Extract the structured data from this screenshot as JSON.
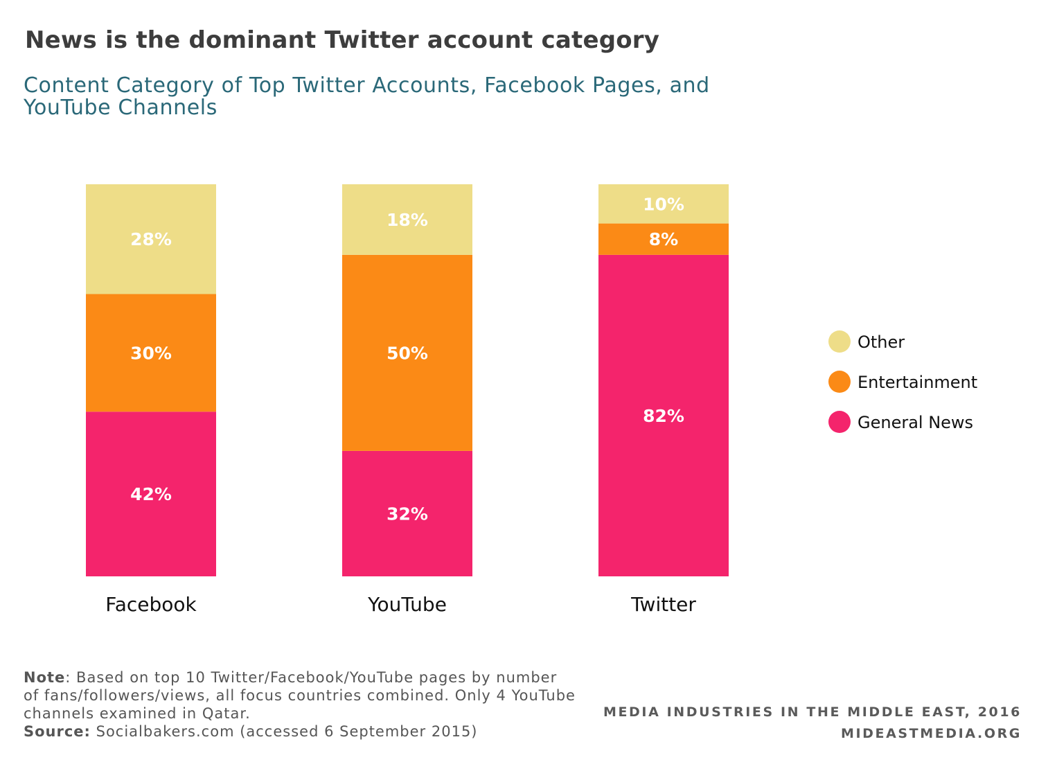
{
  "title": "News is the dominant Twitter account category",
  "subtitle": "Content Category of Top Twitter Accounts, Facebook Pages, and YouTube Channels",
  "note": {
    "label": "Note",
    "text": ": Based on top 10 Twitter/Facebook/YouTube pages by number of fans/followers/views, all focus countries combined. Only 4 YouTube channels examined in Qatar.",
    "source_label": "Source:",
    "source_text": " Socialbakers.com (accessed 6 September 2015)"
  },
  "credits": {
    "line1": "MEDIA INDUSTRIES IN THE MIDDLE EAST, 2016",
    "line2": "MIDEASTMEDIA.ORG"
  },
  "chart_data": {
    "type": "bar",
    "stacked": true,
    "categories": [
      "Facebook",
      "YouTube",
      "Twitter"
    ],
    "series": [
      {
        "name": "General News",
        "color": "#f4246c",
        "values": [
          42,
          32,
          82
        ],
        "labels": [
          "42%",
          "32%",
          "82%"
        ]
      },
      {
        "name": "Entertainment",
        "color": "#fb8a16",
        "values": [
          30,
          50,
          8
        ],
        "labels": [
          "30%",
          "50%",
          "8%"
        ]
      },
      {
        "name": "Other",
        "color": "#eedd88",
        "values": [
          28,
          18,
          10
        ],
        "labels": [
          "28%",
          "18%",
          "10%"
        ]
      }
    ],
    "legend_order": [
      "Other",
      "Entertainment",
      "General News"
    ],
    "legend_position": "right",
    "ylim": [
      0,
      100
    ],
    "grid": false
  }
}
